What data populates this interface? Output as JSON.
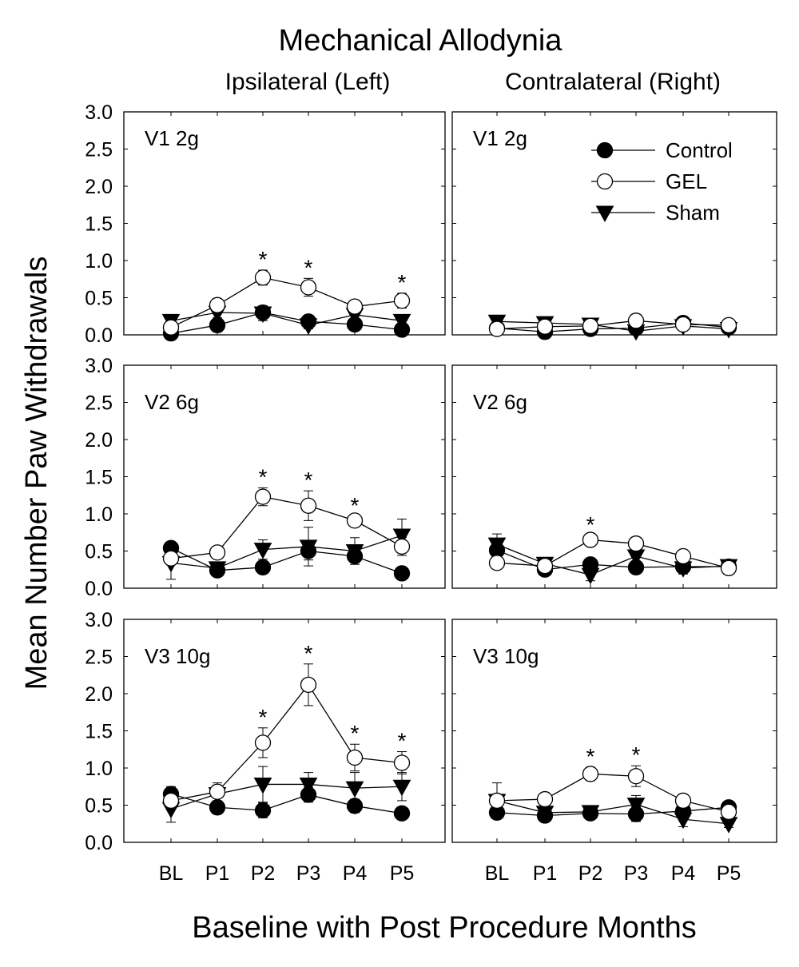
{
  "figure": {
    "title": "Mechanical Allodynia",
    "column_titles": [
      "Ipsilateral (Left)",
      "Contralateral (Right)"
    ],
    "ylabel": "Mean Number Paw Withdrawals",
    "xlabel": "Baseline with Post Procedure Months"
  },
  "legend": {
    "placement": "top-right of upper right panel",
    "entries": [
      {
        "name": "Control",
        "marker": "filled-circle"
      },
      {
        "name": "GEL",
        "marker": "open-circle"
      },
      {
        "name": "Sham",
        "marker": "filled-triangle-down"
      }
    ]
  },
  "chart_data": [
    {
      "type": "line",
      "panel_label": "V1 2g",
      "column": "Ipsilateral (Left)",
      "categories": [
        "BL",
        "P1",
        "P2",
        "P3",
        "P4",
        "P5"
      ],
      "ylim": [
        0,
        3.0
      ],
      "yticks": [
        "0.0",
        "0.5",
        "1.0",
        "1.5",
        "2.0",
        "2.5",
        "3.0"
      ],
      "series": [
        {
          "name": "Control",
          "values": [
            0.02,
            0.13,
            0.3,
            0.18,
            0.14,
            0.07
          ],
          "errors": [
            0.03,
            0.04,
            0.05,
            0.04,
            0.04,
            0.04
          ]
        },
        {
          "name": "GEL",
          "values": [
            0.1,
            0.4,
            0.77,
            0.64,
            0.38,
            0.46
          ],
          "errors": [
            0.05,
            0.05,
            0.1,
            0.12,
            0.05,
            0.1
          ]
        },
        {
          "name": "Sham",
          "values": [
            0.19,
            0.3,
            0.29,
            0.13,
            0.27,
            0.19
          ],
          "errors": [
            0.04,
            0.07,
            0.1,
            0.05,
            0.06,
            0.06
          ]
        }
      ],
      "significant": [
        "P2",
        "P3",
        "P5"
      ]
    },
    {
      "type": "line",
      "panel_label": "V1 2g",
      "column": "Contralateral (Right)",
      "categories": [
        "BL",
        "P1",
        "P2",
        "P3",
        "P4",
        "P5"
      ],
      "ylim": [
        0,
        3.0
      ],
      "series": [
        {
          "name": "Control",
          "values": [
            0.09,
            0.04,
            0.08,
            0.09,
            0.16,
            0.1
          ],
          "errors": [
            0.03,
            0.03,
            0.03,
            0.04,
            0.04,
            0.03
          ]
        },
        {
          "name": "GEL",
          "values": [
            0.08,
            0.11,
            0.12,
            0.19,
            0.14,
            0.13
          ],
          "errors": [
            0.04,
            0.04,
            0.04,
            0.05,
            0.04,
            0.04
          ]
        },
        {
          "name": "Sham",
          "values": [
            0.18,
            0.16,
            0.14,
            0.05,
            0.12,
            0.08
          ],
          "errors": [
            0.07,
            0.05,
            0.05,
            0.03,
            0.04,
            0.03
          ]
        }
      ],
      "significant": []
    },
    {
      "type": "line",
      "panel_label": "V2 6g",
      "column": "Ipsilateral (Left)",
      "categories": [
        "BL",
        "P1",
        "P2",
        "P3",
        "P4",
        "P5"
      ],
      "ylim": [
        0,
        3.0
      ],
      "yticks": [
        "0.0",
        "0.5",
        "1.0",
        "1.5",
        "2.0",
        "2.5",
        "3.0"
      ],
      "series": [
        {
          "name": "Control",
          "values": [
            0.54,
            0.24,
            0.28,
            0.5,
            0.43,
            0.2
          ],
          "errors": [
            0.08,
            0.06,
            0.06,
            0.12,
            0.08,
            0.05
          ]
        },
        {
          "name": "GEL",
          "values": [
            0.4,
            0.48,
            1.23,
            1.11,
            0.91,
            0.56
          ],
          "errors": [
            0.08,
            0.06,
            0.12,
            0.2,
            0.06,
            0.12
          ]
        },
        {
          "name": "Sham",
          "values": [
            0.34,
            0.27,
            0.52,
            0.56,
            0.5,
            0.71
          ],
          "errors": [
            0.22,
            0.08,
            0.13,
            0.26,
            0.18,
            0.22
          ]
        }
      ],
      "significant": [
        "P2",
        "P3",
        "P4"
      ]
    },
    {
      "type": "line",
      "panel_label": "V2 6g",
      "column": "Contralateral (Right)",
      "categories": [
        "BL",
        "P1",
        "P2",
        "P3",
        "P4",
        "P5"
      ],
      "ylim": [
        0,
        3.0
      ],
      "series": [
        {
          "name": "Control",
          "values": [
            0.51,
            0.25,
            0.32,
            0.28,
            0.29,
            0.29
          ],
          "errors": [
            0.07,
            0.05,
            0.06,
            0.05,
            0.05,
            0.05
          ]
        },
        {
          "name": "GEL",
          "values": [
            0.34,
            0.3,
            0.65,
            0.6,
            0.43,
            0.27
          ],
          "errors": [
            0.07,
            0.05,
            0.06,
            0.06,
            0.06,
            0.05
          ]
        },
        {
          "name": "Sham",
          "values": [
            0.59,
            0.33,
            0.18,
            0.43,
            0.27,
            0.3
          ],
          "errors": [
            0.14,
            0.07,
            0.08,
            0.1,
            0.08,
            0.06
          ]
        }
      ],
      "significant": [
        "P2"
      ]
    },
    {
      "type": "line",
      "panel_label": "V3 10g",
      "column": "Ipsilateral (Left)",
      "categories": [
        "BL",
        "P1",
        "P2",
        "P3",
        "P4",
        "P5"
      ],
      "ylim": [
        0,
        3.0
      ],
      "yticks": [
        "0.0",
        "0.5",
        "1.0",
        "1.5",
        "2.0",
        "2.5",
        "3.0"
      ],
      "series": [
        {
          "name": "Control",
          "values": [
            0.65,
            0.47,
            0.43,
            0.64,
            0.49,
            0.39
          ],
          "errors": [
            0.1,
            0.08,
            0.1,
            0.1,
            0.09,
            0.08
          ]
        },
        {
          "name": "GEL",
          "values": [
            0.56,
            0.68,
            1.34,
            2.12,
            1.14,
            1.07
          ],
          "errors": [
            0.1,
            0.12,
            0.2,
            0.28,
            0.18,
            0.15
          ]
        },
        {
          "name": "Sham",
          "values": [
            0.45,
            0.65,
            0.78,
            0.78,
            0.73,
            0.75
          ],
          "errors": [
            0.18,
            0.12,
            0.24,
            0.16,
            0.21,
            0.19
          ]
        }
      ],
      "significant": [
        "P2",
        "P3",
        "P4",
        "P5"
      ]
    },
    {
      "type": "line",
      "panel_label": "V3 10g",
      "column": "Contralateral (Right)",
      "categories": [
        "BL",
        "P1",
        "P2",
        "P3",
        "P4",
        "P5"
      ],
      "ylim": [
        0,
        3.0
      ],
      "series": [
        {
          "name": "Control",
          "values": [
            0.4,
            0.36,
            0.39,
            0.38,
            0.42,
            0.47
          ],
          "errors": [
            0.08,
            0.06,
            0.06,
            0.1,
            0.07,
            0.08
          ]
        },
        {
          "name": "GEL",
          "values": [
            0.56,
            0.58,
            0.92,
            0.89,
            0.56,
            0.41
          ],
          "errors": [
            0.08,
            0.07,
            0.09,
            0.14,
            0.07,
            0.07
          ]
        },
        {
          "name": "Sham",
          "values": [
            0.56,
            0.4,
            0.41,
            0.51,
            0.31,
            0.25
          ],
          "errors": [
            0.24,
            0.07,
            0.07,
            0.12,
            0.1,
            0.05
          ]
        }
      ],
      "significant": [
        "P2",
        "P3"
      ]
    }
  ]
}
